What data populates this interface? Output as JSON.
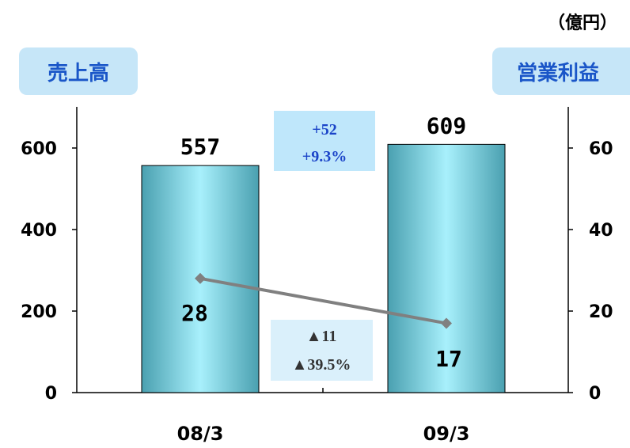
{
  "chart_data": {
    "type": "bar",
    "categories": [
      "08/3",
      "09/3"
    ],
    "unit_label": "（億円）",
    "left_axis": {
      "title": "売上高",
      "ylim": [
        0,
        700
      ],
      "ticks": [
        "0",
        "200",
        "400",
        "600"
      ]
    },
    "right_axis": {
      "title": "営業利益",
      "ylim": [
        0,
        70
      ],
      "ticks": [
        "0",
        "20",
        "40",
        "60"
      ]
    },
    "series": [
      {
        "name": "売上高",
        "type": "bar",
        "axis": "left",
        "values": [
          557,
          609
        ],
        "labels": [
          "557",
          "609"
        ]
      },
      {
        "name": "営業利益",
        "type": "line",
        "axis": "right",
        "values": [
          28,
          17
        ],
        "labels": [
          "28",
          "17"
        ]
      }
    ],
    "annotations": {
      "sales_change": {
        "abs": "+52",
        "pct": "+9.3%"
      },
      "profit_change": {
        "abs": "▲11",
        "pct": "▲39.5%"
      }
    },
    "colors": {
      "bar_dark": "#4aa0b0",
      "bar_light": "#a8f0fc",
      "line": "#808080",
      "title_box": "#c6e6f8",
      "title_text": "#1a56c8",
      "sales_ann_box": "#bfe7fb",
      "sales_ann_text": "#1b44c8",
      "profit_ann_box": "#daf0fb",
      "profit_ann_text": "#333333"
    },
    "legend": "none",
    "grid": false
  }
}
